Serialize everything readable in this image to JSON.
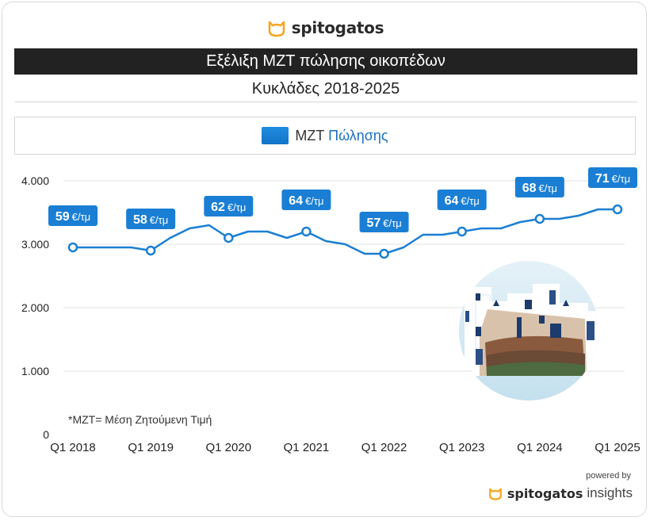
{
  "header": {
    "brand": "spitogatos",
    "title": "Εξέλιξη ΜΖΤ πώλησης οικοπέδων",
    "subtitle": "Κυκλάδες 2018-2025"
  },
  "legend": {
    "prefix": "ΜΖΤ",
    "suffix": "Πώλησης",
    "color": "#1a7fd4"
  },
  "footnote": "*ΜΖΤ= Μέση Ζητούμενη Τιμή",
  "footer": {
    "powered_by": "powered by",
    "brand": "spitogatos",
    "product": "insights"
  },
  "illustration": "cycladic-houses-illustration",
  "chart_data": {
    "type": "line",
    "series_name": "ΜΖΤ Πώλησης",
    "y_ticks": [
      "0",
      "1.000",
      "2.000",
      "3.000",
      "4.000"
    ],
    "y_tick_values": [
      0,
      1000,
      2000,
      3000,
      4000
    ],
    "ylim": [
      0,
      4000
    ],
    "x_tick_labels": [
      "Q1 2018",
      "Q1 2019",
      "Q1 2020",
      "Q1 2021",
      "Q1 2022",
      "Q1 2023",
      "Q1 2024",
      "Q1 2025"
    ],
    "x_tick_index": [
      0,
      4,
      8,
      12,
      16,
      20,
      24,
      28
    ],
    "values": [
      2950,
      2950,
      2950,
      2950,
      2900,
      3100,
      3250,
      3300,
      3100,
      3200,
      3200,
      3100,
      3200,
      3050,
      3000,
      2850,
      2850,
      2950,
      3150,
      3150,
      3200,
      3250,
      3250,
      3350,
      3400,
      3400,
      3450,
      3550,
      3550
    ],
    "markers": [
      0,
      4,
      8,
      12,
      16,
      20,
      24,
      28
    ],
    "annotations": [
      {
        "index": 0,
        "value": "59",
        "unit": "€/τμ"
      },
      {
        "index": 4,
        "value": "58",
        "unit": "€/τμ"
      },
      {
        "index": 8,
        "value": "62",
        "unit": "€/τμ"
      },
      {
        "index": 12,
        "value": "64",
        "unit": "€/τμ"
      },
      {
        "index": 16,
        "value": "57",
        "unit": "€/τμ"
      },
      {
        "index": 20,
        "value": "64",
        "unit": "€/τμ"
      },
      {
        "index": 24,
        "value": "68",
        "unit": "€/τμ"
      },
      {
        "index": 28,
        "value": "71",
        "unit": "€/τμ"
      }
    ],
    "line_color": "#1a7fd4",
    "label_color": "#1a7fd4",
    "grid": true
  }
}
